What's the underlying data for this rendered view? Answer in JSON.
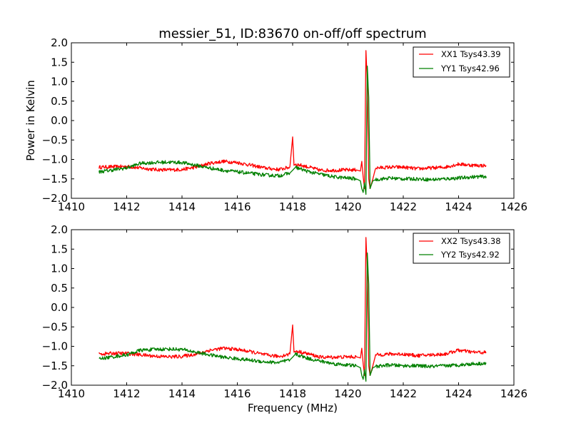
{
  "chart_data": [
    {
      "type": "line",
      "title": "messier_51, ID:83670 on-off/off spectrum",
      "xlabel": "",
      "ylabel": "Power in Kelvin",
      "xlim": [
        1410,
        1426
      ],
      "ylim": [
        -2.0,
        2.0
      ],
      "xticks": [
        "1410",
        "1412",
        "1414",
        "1416",
        "1418",
        "1420",
        "1422",
        "1424",
        "1426"
      ],
      "yticks": [
        "2.0",
        "1.5",
        "1.0",
        "0.5",
        "0.0",
        "−0.5",
        "−1.0",
        "−1.5",
        "−2.0"
      ],
      "xtick_values": [
        1410,
        1412,
        1414,
        1416,
        1418,
        1420,
        1422,
        1424,
        1426
      ],
      "ytick_values": [
        2.0,
        1.5,
        1.0,
        0.5,
        0.0,
        -0.5,
        -1.0,
        -1.5,
        -2.0
      ],
      "legend_position": "top-right",
      "grid": false,
      "series": [
        {
          "name": "XX1 Tsys43.39",
          "color": "#ff0000",
          "x": [
            1411.0,
            1411.5,
            1412.0,
            1412.5,
            1413.0,
            1413.5,
            1414.0,
            1414.5,
            1415.0,
            1415.5,
            1416.0,
            1416.5,
            1417.0,
            1417.5,
            1417.9,
            1418.0,
            1418.05,
            1418.1,
            1418.3,
            1418.6,
            1419.0,
            1419.5,
            1420.0,
            1420.3,
            1420.45,
            1420.5,
            1420.55,
            1420.6,
            1420.65,
            1420.7,
            1420.75,
            1420.8,
            1420.9,
            1421.0,
            1421.5,
            1422.0,
            1422.5,
            1423.0,
            1423.5,
            1424.0,
            1424.5,
            1425.0
          ],
          "y": [
            -1.2,
            -1.19,
            -1.18,
            -1.22,
            -1.26,
            -1.27,
            -1.26,
            -1.2,
            -1.1,
            -1.05,
            -1.08,
            -1.15,
            -1.22,
            -1.26,
            -1.2,
            -0.42,
            -1.15,
            -1.12,
            -1.15,
            -1.2,
            -1.28,
            -1.28,
            -1.27,
            -1.27,
            -1.3,
            -1.05,
            -1.45,
            -1.75,
            1.8,
            1.0,
            -1.5,
            -1.75,
            -1.5,
            -1.22,
            -1.2,
            -1.2,
            -1.24,
            -1.22,
            -1.2,
            -1.12,
            -1.15,
            -1.16
          ]
        },
        {
          "name": "YY1 Tsys42.96",
          "color": "#008000",
          "x": [
            1411.0,
            1411.5,
            1412.0,
            1412.5,
            1413.0,
            1413.5,
            1414.0,
            1414.5,
            1415.0,
            1415.5,
            1416.0,
            1416.5,
            1417.0,
            1417.5,
            1417.9,
            1418.0,
            1418.1,
            1418.3,
            1418.6,
            1419.0,
            1419.5,
            1420.0,
            1420.3,
            1420.45,
            1420.5,
            1420.55,
            1420.6,
            1420.65,
            1420.7,
            1420.75,
            1420.8,
            1420.9,
            1421.0,
            1421.5,
            1422.0,
            1422.5,
            1423.0,
            1423.5,
            1424.0,
            1424.5,
            1425.0
          ],
          "y": [
            -1.32,
            -1.27,
            -1.22,
            -1.1,
            -1.08,
            -1.07,
            -1.08,
            -1.15,
            -1.22,
            -1.28,
            -1.32,
            -1.36,
            -1.4,
            -1.42,
            -1.35,
            -1.28,
            -1.2,
            -1.25,
            -1.32,
            -1.38,
            -1.45,
            -1.48,
            -1.5,
            -1.55,
            -1.75,
            -1.85,
            -1.6,
            -1.9,
            1.4,
            0.6,
            -1.75,
            -1.55,
            -1.52,
            -1.48,
            -1.5,
            -1.5,
            -1.52,
            -1.5,
            -1.48,
            -1.45,
            -1.44
          ]
        }
      ]
    },
    {
      "type": "line",
      "title": "",
      "xlabel": "Frequency (MHz)",
      "ylabel": "",
      "xlim": [
        1410,
        1426
      ],
      "ylim": [
        -2.0,
        2.0
      ],
      "xticks": [
        "1410",
        "1412",
        "1414",
        "1416",
        "1418",
        "1420",
        "1422",
        "1424",
        "1426"
      ],
      "yticks": [
        "2.0",
        "1.5",
        "1.0",
        "0.5",
        "0.0",
        "−0.5",
        "−1.0",
        "−1.5",
        "−2.0"
      ],
      "xtick_values": [
        1410,
        1412,
        1414,
        1416,
        1418,
        1420,
        1422,
        1424,
        1426
      ],
      "ytick_values": [
        2.0,
        1.5,
        1.0,
        0.5,
        0.0,
        -0.5,
        -1.0,
        -1.5,
        -2.0
      ],
      "legend_position": "top-right",
      "grid": false,
      "series": [
        {
          "name": "XX2 Tsys43.38",
          "color": "#ff0000",
          "x": [
            1411.0,
            1411.5,
            1412.0,
            1412.5,
            1413.0,
            1413.5,
            1414.0,
            1414.5,
            1415.0,
            1415.5,
            1416.0,
            1416.5,
            1417.0,
            1417.5,
            1417.9,
            1418.0,
            1418.05,
            1418.1,
            1418.3,
            1418.6,
            1419.0,
            1419.5,
            1420.0,
            1420.3,
            1420.45,
            1420.5,
            1420.55,
            1420.6,
            1420.65,
            1420.7,
            1420.75,
            1420.8,
            1420.9,
            1421.0,
            1421.5,
            1422.0,
            1422.5,
            1423.0,
            1423.5,
            1424.0,
            1424.5,
            1425.0
          ],
          "y": [
            -1.2,
            -1.18,
            -1.18,
            -1.22,
            -1.25,
            -1.27,
            -1.26,
            -1.2,
            -1.1,
            -1.05,
            -1.08,
            -1.14,
            -1.22,
            -1.26,
            -1.2,
            -0.45,
            -1.15,
            -1.12,
            -1.15,
            -1.2,
            -1.28,
            -1.28,
            -1.27,
            -1.27,
            -1.3,
            -1.05,
            -1.45,
            -1.75,
            1.8,
            1.0,
            -1.5,
            -1.75,
            -1.5,
            -1.22,
            -1.2,
            -1.2,
            -1.24,
            -1.22,
            -1.2,
            -1.1,
            -1.15,
            -1.16
          ]
        },
        {
          "name": "YY2 Tsys42.92",
          "color": "#008000",
          "x": [
            1411.0,
            1411.5,
            1412.0,
            1412.5,
            1413.0,
            1413.5,
            1414.0,
            1414.5,
            1415.0,
            1415.5,
            1416.0,
            1416.5,
            1417.0,
            1417.5,
            1417.9,
            1418.0,
            1418.1,
            1418.3,
            1418.6,
            1419.0,
            1419.5,
            1420.0,
            1420.3,
            1420.45,
            1420.5,
            1420.55,
            1420.6,
            1420.65,
            1420.7,
            1420.75,
            1420.8,
            1420.9,
            1421.0,
            1421.5,
            1422.0,
            1422.5,
            1423.0,
            1423.5,
            1424.0,
            1424.5,
            1425.0
          ],
          "y": [
            -1.32,
            -1.27,
            -1.22,
            -1.1,
            -1.08,
            -1.07,
            -1.08,
            -1.15,
            -1.22,
            -1.28,
            -1.32,
            -1.36,
            -1.4,
            -1.42,
            -1.35,
            -1.28,
            -1.2,
            -1.25,
            -1.32,
            -1.38,
            -1.45,
            -1.48,
            -1.5,
            -1.55,
            -1.75,
            -1.85,
            -1.6,
            -1.9,
            1.4,
            0.6,
            -1.75,
            -1.55,
            -1.52,
            -1.48,
            -1.5,
            -1.5,
            -1.52,
            -1.5,
            -1.48,
            -1.45,
            -1.44
          ]
        }
      ]
    }
  ]
}
